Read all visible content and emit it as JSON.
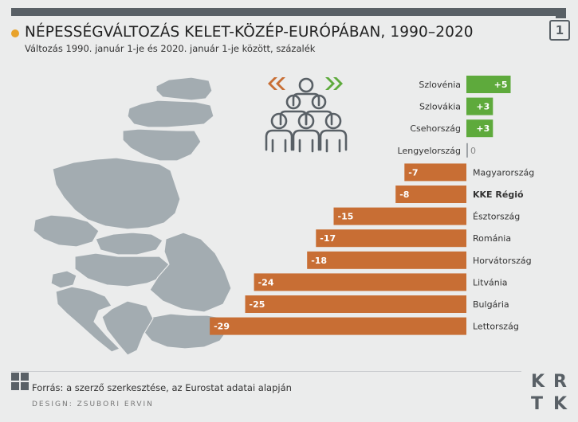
{
  "header": {
    "badge": "1",
    "title": "NÉPESSÉGVÁLTOZÁS KELET-KÖZÉP-EURÓPÁBAN, 1990–2020",
    "subtitle": "Változás 1990. január 1-je és 2020. január 1-je között, százalék"
  },
  "colors": {
    "positive": "#5eaa3c",
    "negative": "#c86e34",
    "zero": "#a0a4a8",
    "map": "#a3acb1",
    "dark": "#596066",
    "accent": "#e8a32c"
  },
  "chart_data": {
    "type": "bar",
    "orientation": "horizontal",
    "title": "NÉPESSÉGVÁLTOZÁS KELET-KÖZÉP-EURÓPÁBAN, 1990–2020",
    "subtitle": "Változás 1990. január 1-je és 2020. január 1-je között, százalék",
    "unit": "%",
    "xlim": [
      -29,
      5
    ],
    "categories": [
      "Szlovénia",
      "Szlovákia",
      "Csehország",
      "Lengyelország",
      "Magyarország",
      "KKE Régió",
      "Észtország",
      "Románia",
      "Horvátország",
      "Litvánia",
      "Bulgária",
      "Lettország"
    ],
    "values": [
      5,
      3,
      3,
      0,
      -7,
      -8,
      -15,
      -17,
      -18,
      -24,
      -25,
      -29
    ],
    "value_labels": [
      "+5",
      "+3",
      "+3",
      "0",
      "-7",
      "-8",
      "-15",
      "-17",
      "-18",
      "-24",
      "-25",
      "-29"
    ],
    "highlight": "KKE Régió"
  },
  "footer": {
    "source": "Forrás: a szerző szerkesztése, az Eurostat adatai alapján",
    "design": "DESIGN: ZSUBORI ERVIN",
    "logo": [
      "K",
      "R",
      "T",
      "K"
    ]
  }
}
